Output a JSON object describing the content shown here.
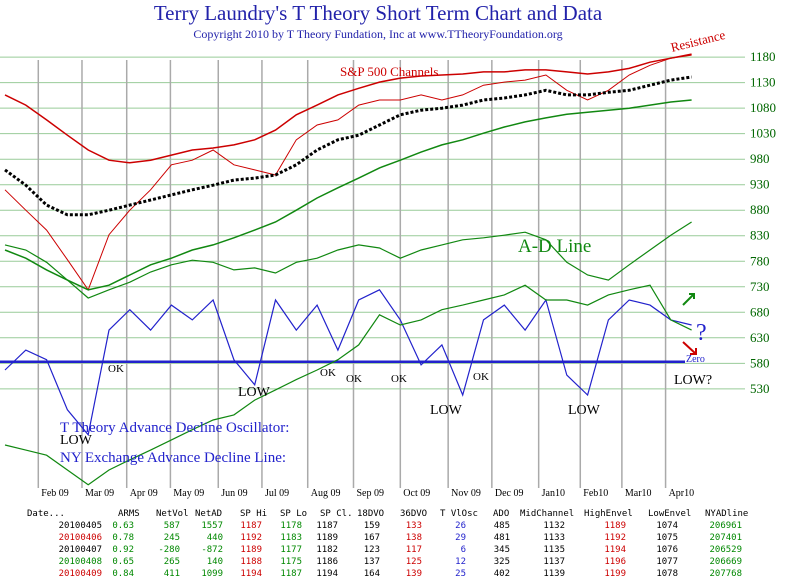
{
  "chart_data": {
    "type": "line",
    "title": "Terry Laundry's T Theory Short Term Chart and Data",
    "subtitle": "Copyright 2010 by T Theory Fundation, Inc at www.TTheoryFoundation.org",
    "x": [
      0,
      2,
      4,
      6,
      8,
      10,
      12,
      14,
      16,
      18,
      20,
      22,
      24,
      26,
      28,
      30,
      32,
      34,
      36,
      38,
      40,
      42,
      44,
      46,
      48,
      50,
      52,
      54,
      56,
      58,
      60,
      62,
      64,
      66
    ],
    "xlim": [
      0,
      72
    ],
    "xticks": [
      {
        "value": 3.2,
        "label": "Feb 09"
      },
      {
        "value": 7.4,
        "label": "Mar 09"
      },
      {
        "value": 11.7,
        "label": "Apr 09"
      },
      {
        "value": 15.9,
        "label": "May 09"
      },
      {
        "value": 20.5,
        "label": "Jun 09"
      },
      {
        "value": 24.7,
        "label": "Jul 09"
      },
      {
        "value": 29.1,
        "label": "Aug 09"
      },
      {
        "value": 33.5,
        "label": "Sep 09"
      },
      {
        "value": 38,
        "label": "Oct 09"
      },
      {
        "value": 42.6,
        "label": "Nov 09"
      },
      {
        "value": 46.8,
        "label": "Dec 09"
      },
      {
        "value": 51.3,
        "label": "Jan10"
      },
      {
        "value": 55.3,
        "label": "Feb10"
      },
      {
        "value": 59.3,
        "label": "Mar10"
      },
      {
        "value": 63.5,
        "label": "Apr10"
      }
    ],
    "ylim": [
      320,
      1290
    ],
    "yticks": [
      530,
      580,
      630,
      680,
      730,
      780,
      830,
      880,
      930,
      980,
      1030,
      1080,
      1130,
      1180
    ],
    "grid": true,
    "zero_level": 583,
    "series": [
      {
        "color": "#cc0000",
        "width": 1.5,
        "values": [
          1106,
          1086,
          1057,
          1027,
          998,
          978,
          973,
          978,
          988,
          998,
          1002,
          1008,
          1018,
          1037,
          1067,
          1086,
          1106,
          1119,
          1131,
          1139,
          1143,
          1145,
          1147,
          1151,
          1151,
          1155,
          1155,
          1151,
          1147,
          1151,
          1158,
          1170,
          1178,
          1186
        ]
      },
      {
        "color": "#cc0000",
        "width": 1,
        "values": [
          920,
          880,
          841,
          783,
          724,
          832,
          880,
          920,
          969,
          978,
          998,
          969,
          959,
          949,
          1018,
          1047,
          1057,
          1086,
          1096,
          1096,
          1106,
          1096,
          1106,
          1125,
          1131,
          1135,
          1145,
          1115,
          1096,
          1115,
          1145,
          1164,
          1178,
          1184
        ]
      },
      {
        "color": "#000000",
        "width": 3,
        "dash": true,
        "values": [
          959,
          929,
          890,
          871,
          871,
          880,
          890,
          900,
          910,
          920,
          929,
          939,
          943,
          949,
          969,
          998,
          1018,
          1027,
          1047,
          1067,
          1076,
          1080,
          1086,
          1096,
          1100,
          1106,
          1115,
          1106,
          1106,
          1111,
          1115,
          1125,
          1135,
          1141
        ]
      },
      {
        "color": "#118811",
        "width": 1.5,
        "values": [
          802,
          786,
          763,
          743,
          724,
          733,
          753,
          773,
          786,
          802,
          812,
          826,
          841,
          857,
          880,
          904,
          924,
          943,
          963,
          978,
          994,
          1008,
          1018,
          1031,
          1043,
          1053,
          1061,
          1068,
          1072,
          1076,
          1080,
          1086,
          1092,
          1096
        ]
      },
      {
        "color": "#118811",
        "width": 1.2,
        "values": [
          812,
          802,
          778,
          743,
          708,
          724,
          739,
          759,
          773,
          782,
          778,
          763,
          767,
          757,
          778,
          786,
          802,
          812,
          806,
          786,
          802,
          812,
          822,
          826,
          831,
          837,
          822,
          778,
          753,
          743,
          773,
          802,
          831,
          857
        ]
      },
      {
        "color": "#2222cc",
        "width": 1.2,
        "values": [
          567,
          606,
          587,
          489,
          440,
          645,
          685,
          645,
          694,
          665,
          704,
          587,
          538,
          704,
          645,
          694,
          606,
          704,
          724,
          665,
          577,
          616,
          518,
          665,
          694,
          645,
          704,
          557,
          518,
          665,
          704,
          694,
          665,
          655
        ]
      },
      {
        "color": "#118811",
        "width": 1.2,
        "values": [
          420,
          410,
          400,
          371,
          342,
          371,
          391,
          410,
          430,
          450,
          469,
          479,
          508,
          528,
          548,
          567,
          587,
          616,
          675,
          655,
          665,
          685,
          694,
          704,
          714,
          733,
          704,
          704,
          694,
          714,
          724,
          733,
          665,
          645
        ]
      }
    ],
    "annotations": [
      "Resistance",
      "S&P 500 Channels",
      "A-D Line",
      "OK",
      "OK",
      "OK",
      "OK",
      "OK",
      "LOW",
      "LOW",
      "LOW",
      "LOW",
      "LOW?",
      "Zero",
      "?",
      "T Theory  Advance Decline Oscillator:",
      "NY Exchange Advance Decline Line:"
    ]
  },
  "table": {
    "header": [
      "Date...",
      "ARMS",
      "NetVol",
      "NetAD",
      "SP Hi",
      "SP Lo",
      "SP Cl.",
      "18DVO",
      "36DVO",
      "T VlOsc",
      "ADO",
      "MidChannel",
      "HighEnvel",
      "LowEnvel",
      "NYADline"
    ],
    "rows": [
      [
        20100405,
        0.63,
        587,
        1557,
        1187,
        1178,
        1187,
        159,
        133,
        26,
        485,
        1132,
        1189,
        1074,
        206961
      ],
      [
        20100406,
        0.78,
        245,
        440,
        1192,
        1183,
        1189,
        167,
        138,
        29,
        481,
        1133,
        1192,
        1075,
        207401
      ],
      [
        20100407,
        0.92,
        -280,
        -872,
        1189,
        1177,
        1182,
        123,
        117,
        6,
        345,
        1135,
        1194,
        1076,
        206529
      ],
      [
        20100408,
        0.65,
        265,
        140,
        1188,
        1175,
        1186,
        137,
        125,
        12,
        325,
        1137,
        1196,
        1077,
        206669
      ],
      [
        20100409,
        0.84,
        411,
        1099,
        1194,
        1187,
        1194,
        164,
        139,
        25,
        402,
        1139,
        1199,
        1078,
        207768
      ]
    ]
  }
}
